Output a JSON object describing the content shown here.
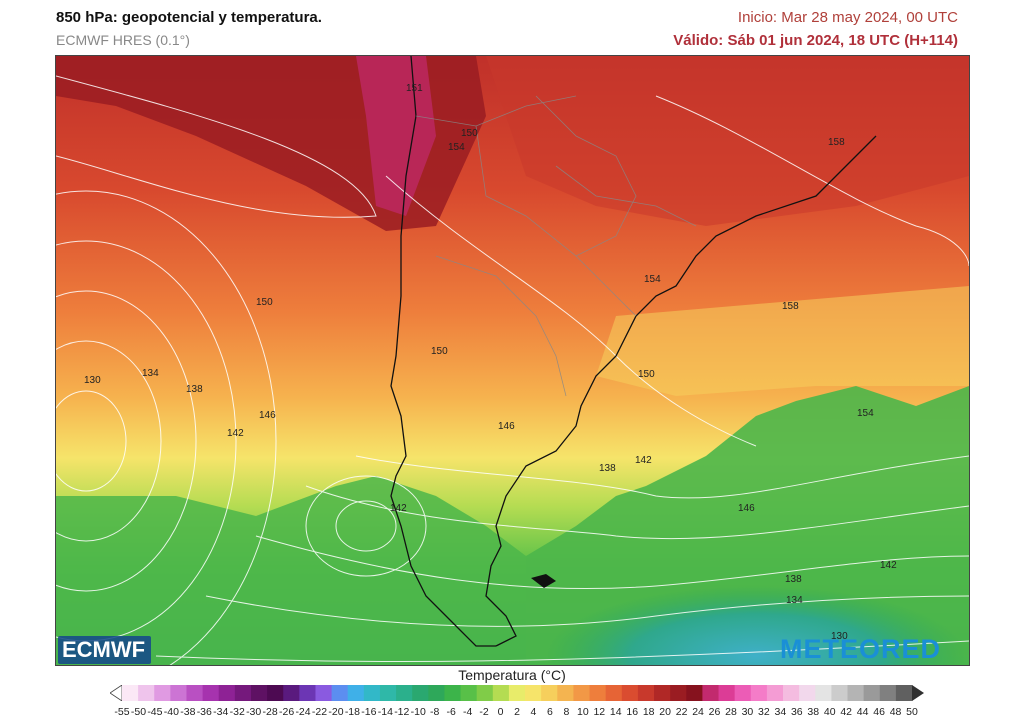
{
  "header": {
    "title": "850 hPa: geopotencial y temperatura.",
    "model": "ECMWF HRES (0.1°)",
    "init": "Inicio: Mar 28 may 2024, 00 UTC",
    "valid": "Válido: Sáb 01 jun 2024, 18 UTC (H+114)"
  },
  "map": {
    "region": "South America - Southern Cone",
    "contour_labels": [
      "151",
      "150",
      "154",
      "158",
      "154",
      "158",
      "150",
      "130",
      "134",
      "138",
      "146",
      "142",
      "150",
      "146",
      "138",
      "142",
      "150",
      "154",
      "146",
      "142",
      "138",
      "134",
      "130",
      "142"
    ]
  },
  "legend": {
    "title": "Temperatura (°C)",
    "ticks": [
      "-55",
      "-50",
      "-45",
      "-40",
      "-38",
      "-36",
      "-34",
      "-32",
      "-30",
      "-28",
      "-26",
      "-24",
      "-22",
      "-20",
      "-18",
      "-16",
      "-14",
      "-12",
      "-10",
      "-8",
      "-6",
      "-4",
      "-2",
      "0",
      "2",
      "4",
      "6",
      "8",
      "10",
      "12",
      "14",
      "16",
      "18",
      "20",
      "22",
      "24",
      "26",
      "28",
      "30",
      "32",
      "34",
      "36",
      "38",
      "40",
      "42",
      "44",
      "46",
      "48",
      "50"
    ],
    "colors": [
      "#fbe8f6",
      "#efc4ec",
      "#e09ae2",
      "#cc74d4",
      "#b950c2",
      "#a633ae",
      "#8e2295",
      "#75197c",
      "#5e1163",
      "#4d0a52",
      "#5a1a7e",
      "#6c36b4",
      "#8a5ae0",
      "#5c8ef0",
      "#3fb0e8",
      "#32b8c8",
      "#2fb8a8",
      "#2bb08c",
      "#2aa870",
      "#2ea85a",
      "#3cb44a",
      "#58c048",
      "#80cc48",
      "#b4dc52",
      "#e8ec6a",
      "#f6e46a",
      "#f6cf5c",
      "#f4b450",
      "#f29846",
      "#ee7e3c",
      "#e66436",
      "#da4c30",
      "#c8392c",
      "#b02826",
      "#9a1c22",
      "#86121e",
      "#c22a6e",
      "#dc3c96",
      "#ec5cb6",
      "#f47cc8",
      "#f49cd4",
      "#f4bce0",
      "#f2d8ec",
      "#e4e4e4",
      "#cccccc",
      "#b4b4b4",
      "#9a9a9a",
      "#808080",
      "#606060"
    ]
  },
  "logos": {
    "ecmwf": "ECMWF",
    "meteored": "METEORED"
  }
}
